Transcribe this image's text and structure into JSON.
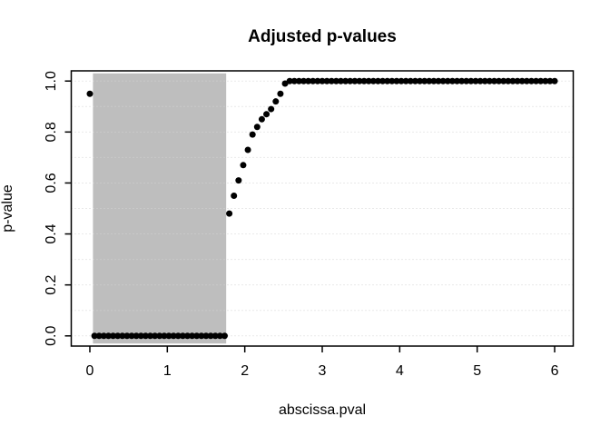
{
  "chart_data": {
    "type": "scatter",
    "title": "Adjusted p-values",
    "xlabel": "abscissa.pval",
    "ylabel": "p-value",
    "x_ticks": [
      0,
      1,
      2,
      3,
      4,
      5,
      6
    ],
    "y_ticks": [
      "0.0",
      "0.2",
      "0.4",
      "0.6",
      "0.8",
      "1.0"
    ],
    "xlim": [
      -0.24,
      6.24
    ],
    "ylim": [
      -0.04,
      1.04
    ],
    "grid": {
      "axis": "y",
      "from": 0.0,
      "to": 1.0,
      "step": 0.1,
      "style": "dotted",
      "color": "#d3d3d3"
    },
    "legend": "none",
    "shaded_region": {
      "x0": 0.04,
      "x1": 1.76,
      "y0": -0.03,
      "y1": 1.03,
      "color": "#bebebe"
    },
    "point_style": {
      "shape": "filled-circle",
      "color": "#000000",
      "radius_px": 3.5
    },
    "colors": {
      "background": "#ffffff",
      "axis": "#000000",
      "points": "#000000"
    },
    "points": [
      [
        0.0,
        0.95
      ],
      [
        0.06,
        0.0
      ],
      [
        0.12,
        0.0
      ],
      [
        0.18,
        0.0
      ],
      [
        0.24,
        0.0
      ],
      [
        0.3,
        0.0
      ],
      [
        0.36,
        0.0
      ],
      [
        0.42,
        0.0
      ],
      [
        0.48,
        0.0
      ],
      [
        0.54,
        0.0
      ],
      [
        0.6,
        0.0
      ],
      [
        0.66,
        0.0
      ],
      [
        0.72,
        0.0
      ],
      [
        0.78,
        0.0
      ],
      [
        0.84,
        0.0
      ],
      [
        0.9,
        0.0
      ],
      [
        0.96,
        0.0
      ],
      [
        1.02,
        0.0
      ],
      [
        1.08,
        0.0
      ],
      [
        1.14,
        0.0
      ],
      [
        1.2,
        0.0
      ],
      [
        1.26,
        0.0
      ],
      [
        1.32,
        0.0
      ],
      [
        1.38,
        0.0
      ],
      [
        1.44,
        0.0
      ],
      [
        1.5,
        0.0
      ],
      [
        1.56,
        0.0
      ],
      [
        1.62,
        0.0
      ],
      [
        1.68,
        0.0
      ],
      [
        1.74,
        0.0
      ],
      [
        1.8,
        0.48
      ],
      [
        1.86,
        0.55
      ],
      [
        1.92,
        0.61
      ],
      [
        1.98,
        0.67
      ],
      [
        2.04,
        0.73
      ],
      [
        2.1,
        0.79
      ],
      [
        2.16,
        0.82
      ],
      [
        2.22,
        0.85
      ],
      [
        2.28,
        0.87
      ],
      [
        2.34,
        0.89
      ],
      [
        2.4,
        0.92
      ],
      [
        2.46,
        0.95
      ],
      [
        2.52,
        0.99
      ],
      [
        2.58,
        1.0
      ],
      [
        2.64,
        1.0
      ],
      [
        2.7,
        1.0
      ],
      [
        2.76,
        1.0
      ],
      [
        2.82,
        1.0
      ],
      [
        2.88,
        1.0
      ],
      [
        2.94,
        1.0
      ],
      [
        3.0,
        1.0
      ],
      [
        3.06,
        1.0
      ],
      [
        3.12,
        1.0
      ],
      [
        3.18,
        1.0
      ],
      [
        3.24,
        1.0
      ],
      [
        3.3,
        1.0
      ],
      [
        3.36,
        1.0
      ],
      [
        3.42,
        1.0
      ],
      [
        3.48,
        1.0
      ],
      [
        3.54,
        1.0
      ],
      [
        3.6,
        1.0
      ],
      [
        3.66,
        1.0
      ],
      [
        3.72,
        1.0
      ],
      [
        3.78,
        1.0
      ],
      [
        3.84,
        1.0
      ],
      [
        3.9,
        1.0
      ],
      [
        3.96,
        1.0
      ],
      [
        4.02,
        1.0
      ],
      [
        4.08,
        1.0
      ],
      [
        4.14,
        1.0
      ],
      [
        4.2,
        1.0
      ],
      [
        4.26,
        1.0
      ],
      [
        4.32,
        1.0
      ],
      [
        4.38,
        1.0
      ],
      [
        4.44,
        1.0
      ],
      [
        4.5,
        1.0
      ],
      [
        4.56,
        1.0
      ],
      [
        4.62,
        1.0
      ],
      [
        4.68,
        1.0
      ],
      [
        4.74,
        1.0
      ],
      [
        4.8,
        1.0
      ],
      [
        4.86,
        1.0
      ],
      [
        4.92,
        1.0
      ],
      [
        4.98,
        1.0
      ],
      [
        5.04,
        1.0
      ],
      [
        5.1,
        1.0
      ],
      [
        5.16,
        1.0
      ],
      [
        5.22,
        1.0
      ],
      [
        5.28,
        1.0
      ],
      [
        5.34,
        1.0
      ],
      [
        5.4,
        1.0
      ],
      [
        5.46,
        1.0
      ],
      [
        5.52,
        1.0
      ],
      [
        5.58,
        1.0
      ],
      [
        5.64,
        1.0
      ],
      [
        5.7,
        1.0
      ],
      [
        5.76,
        1.0
      ],
      [
        5.82,
        1.0
      ],
      [
        5.88,
        1.0
      ],
      [
        5.94,
        1.0
      ],
      [
        6.0,
        1.0
      ]
    ]
  }
}
